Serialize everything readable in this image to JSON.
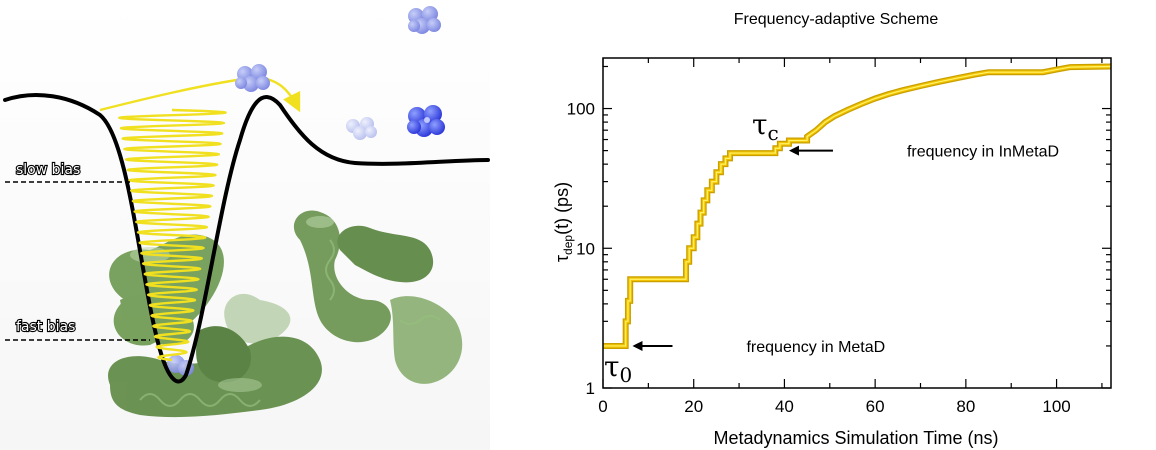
{
  "illustration": {
    "slow_bias_label": "slow bias",
    "fast_bias_label": "fast bias",
    "colors": {
      "potential": "#000000",
      "trajectory": "#f0e020",
      "protein": "#5f8a45",
      "particle": "#2a35d8"
    },
    "icons": [
      "free-energy-well",
      "oscillating-trajectory",
      "protein-surface",
      "particle-cluster"
    ]
  },
  "chart_data": {
    "type": "line",
    "title": "Frequency-adaptive Scheme",
    "xlabel": "Metadynamics Simulation Time (ns)",
    "ylabel_main": "τ",
    "ylabel_sub": "dep",
    "ylabel_rest": "(t) (ps)",
    "xlim": [
      0,
      112
    ],
    "ylim": [
      1,
      230
    ],
    "yscale": "log",
    "xticks": [
      0,
      20,
      40,
      60,
      80,
      100
    ],
    "yticks": [
      1,
      10,
      100
    ],
    "line_color": "#f2c200",
    "series": [
      {
        "x": [
          0,
          5,
          5,
          5.5,
          5.5,
          6,
          6,
          18.3,
          18.3,
          19,
          19,
          20,
          20,
          20.8,
          20.8,
          21.5,
          21.5,
          22.2,
          22.2,
          23,
          23,
          24,
          24,
          25,
          25,
          26,
          26,
          27,
          27,
          28,
          28,
          38,
          38,
          39,
          39,
          41,
          41,
          45,
          45,
          47,
          49,
          51,
          54,
          57,
          60,
          63,
          66,
          70,
          74,
          78,
          82,
          85,
          97,
          100,
          103,
          112
        ],
        "y": [
          2,
          2,
          3,
          3,
          4.2,
          4.2,
          6,
          6,
          8,
          8,
          10,
          10,
          12,
          12,
          15,
          15,
          18,
          18,
          22,
          22,
          26,
          26,
          30,
          30,
          35,
          35,
          40,
          40,
          44,
          44,
          48,
          48,
          52,
          52,
          56,
          56,
          59,
          59,
          63,
          70,
          80,
          88,
          98,
          108,
          118,
          127,
          135,
          145,
          155,
          165,
          175,
          182,
          182,
          190,
          198,
          200
        ]
      }
    ],
    "annotations": [
      {
        "text": "frequency in MetaD",
        "x": 6.5,
        "y": 2
      },
      {
        "text": "frequency in InMetaD",
        "x": 41,
        "y": 50
      }
    ],
    "tau0_label": "τ",
    "tau0_sub": "0",
    "tauc_label": "τ",
    "tauc_sub": "c"
  }
}
